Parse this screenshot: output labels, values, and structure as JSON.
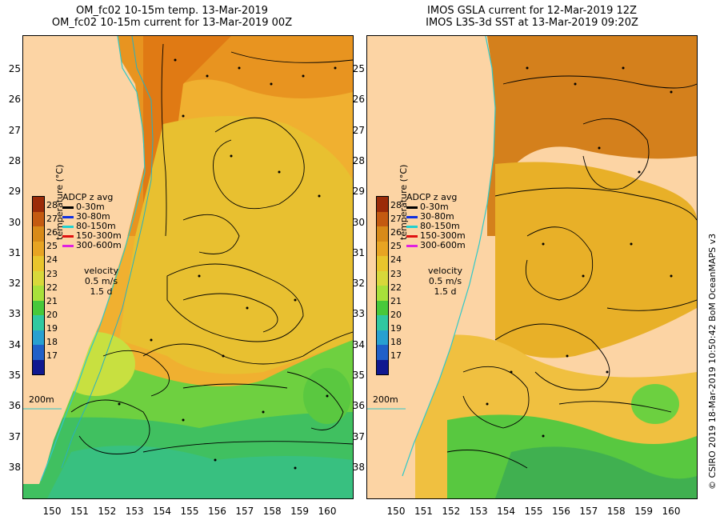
{
  "left_panel": {
    "title_line1": "OM_fc02 10-15m temp. 13-Mar-2019",
    "title_line2": "OM_fc02 10-15m current for 13-Mar-2019 00Z"
  },
  "right_panel": {
    "title_line1": "IMOS GSLA current for 12-Mar-2019 12Z",
    "title_line2": "IMOS L3S-3d SST at 13-Mar-2019 09:20Z"
  },
  "y_ticks": [
    "25",
    "26",
    "27",
    "28",
    "29",
    "30",
    "31",
    "32",
    "33",
    "34",
    "35",
    "36",
    "37",
    "38"
  ],
  "x_ticks": [
    "150",
    "151",
    "152",
    "153",
    "154",
    "155",
    "156",
    "157",
    "158",
    "159",
    "160"
  ],
  "colorbar": {
    "ticks": [
      "28",
      "27",
      "26",
      "25",
      "24",
      "23",
      "22",
      "21",
      "20",
      "19",
      "18",
      "17"
    ],
    "label": "temperature (°C)",
    "colors": [
      "#9b2b08",
      "#c45a10",
      "#d88a18",
      "#e8a422",
      "#e9c52c",
      "#d8d83a",
      "#a8e03a",
      "#48c83a",
      "#30c8a0",
      "#28a0d0",
      "#2060c8",
      "#101890"
    ]
  },
  "legend": {
    "title": "ADCP z avg",
    "items": [
      {
        "label": "0-30m",
        "color": "#000000"
      },
      {
        "label": "30-80m",
        "color": "#1030e0"
      },
      {
        "label": "80-150m",
        "color": "#20d0d0"
      },
      {
        "label": "150-300m",
        "color": "#e01010"
      },
      {
        "label": "300-600m",
        "color": "#e020e0"
      }
    ]
  },
  "velocity_key": {
    "title": "velocity",
    "speed": "0.5 m/s",
    "time": "1.5 d"
  },
  "isobath_label": "200m",
  "credit": "© CSIRO 2019   18-Mar-2019 10:50:42 BoM OceanMAPS v3",
  "colors": {
    "land": "#fcd4a4",
    "coast_line": "#30c8c8"
  }
}
